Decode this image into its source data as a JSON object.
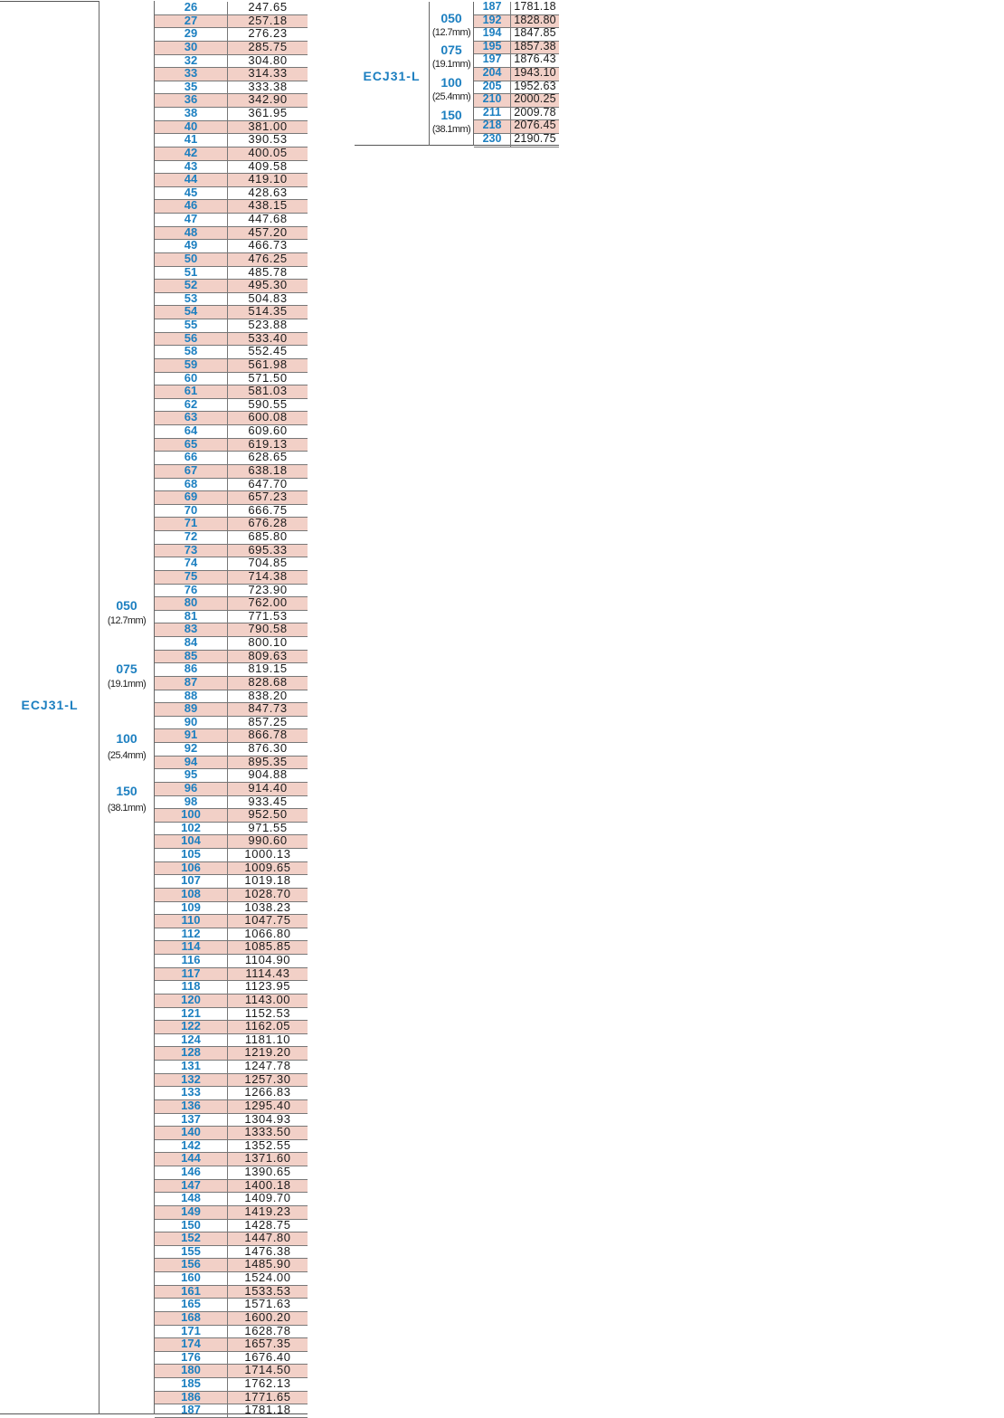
{
  "main_table": {
    "series": "ECJ31-L",
    "sizes": [
      {
        "code": "050",
        "mm": "(12.7mm)"
      },
      {
        "code": "075",
        "mm": "(19.1mm)"
      },
      {
        "code": "100",
        "mm": "(25.4mm)"
      },
      {
        "code": "150",
        "mm": "(38.1mm)"
      }
    ],
    "rows": [
      {
        "code": "26",
        "value": "247.65",
        "shaded": false
      },
      {
        "code": "27",
        "value": "257.18",
        "shaded": true
      },
      {
        "code": "29",
        "value": "276.23",
        "shaded": false
      },
      {
        "code": "30",
        "value": "285.75",
        "shaded": true
      },
      {
        "code": "32",
        "value": "304.80",
        "shaded": false
      },
      {
        "code": "33",
        "value": "314.33",
        "shaded": true
      },
      {
        "code": "35",
        "value": "333.38",
        "shaded": false
      },
      {
        "code": "36",
        "value": "342.90",
        "shaded": true
      },
      {
        "code": "38",
        "value": "361.95",
        "shaded": false
      },
      {
        "code": "40",
        "value": "381.00",
        "shaded": true
      },
      {
        "code": "41",
        "value": "390.53",
        "shaded": false
      },
      {
        "code": "42",
        "value": "400.05",
        "shaded": true
      },
      {
        "code": "43",
        "value": "409.58",
        "shaded": false
      },
      {
        "code": "44",
        "value": "419.10",
        "shaded": true
      },
      {
        "code": "45",
        "value": "428.63",
        "shaded": false
      },
      {
        "code": "46",
        "value": "438.15",
        "shaded": true
      },
      {
        "code": "47",
        "value": "447.68",
        "shaded": false
      },
      {
        "code": "48",
        "value": "457.20",
        "shaded": true
      },
      {
        "code": "49",
        "value": "466.73",
        "shaded": false
      },
      {
        "code": "50",
        "value": "476.25",
        "shaded": true
      },
      {
        "code": "51",
        "value": "485.78",
        "shaded": false
      },
      {
        "code": "52",
        "value": "495.30",
        "shaded": true
      },
      {
        "code": "53",
        "value": "504.83",
        "shaded": false
      },
      {
        "code": "54",
        "value": "514.35",
        "shaded": true
      },
      {
        "code": "55",
        "value": "523.88",
        "shaded": false
      },
      {
        "code": "56",
        "value": "533.40",
        "shaded": true
      },
      {
        "code": "58",
        "value": "552.45",
        "shaded": false
      },
      {
        "code": "59",
        "value": "561.98",
        "shaded": true
      },
      {
        "code": "60",
        "value": "571.50",
        "shaded": false
      },
      {
        "code": "61",
        "value": "581.03",
        "shaded": true
      },
      {
        "code": "62",
        "value": "590.55",
        "shaded": false
      },
      {
        "code": "63",
        "value": "600.08",
        "shaded": true
      },
      {
        "code": "64",
        "value": "609.60",
        "shaded": false
      },
      {
        "code": "65",
        "value": "619.13",
        "shaded": true
      },
      {
        "code": "66",
        "value": "628.65",
        "shaded": false
      },
      {
        "code": "67",
        "value": "638.18",
        "shaded": true
      },
      {
        "code": "68",
        "value": "647.70",
        "shaded": false
      },
      {
        "code": "69",
        "value": "657.23",
        "shaded": true
      },
      {
        "code": "70",
        "value": "666.75",
        "shaded": false
      },
      {
        "code": "71",
        "value": "676.28",
        "shaded": true
      },
      {
        "code": "72",
        "value": "685.80",
        "shaded": false
      },
      {
        "code": "73",
        "value": "695.33",
        "shaded": true
      },
      {
        "code": "74",
        "value": "704.85",
        "shaded": false
      },
      {
        "code": "75",
        "value": "714.38",
        "shaded": true
      },
      {
        "code": "76",
        "value": "723.90",
        "shaded": false
      },
      {
        "code": "80",
        "value": "762.00",
        "shaded": true
      },
      {
        "code": "81",
        "value": "771.53",
        "shaded": false
      },
      {
        "code": "83",
        "value": "790.58",
        "shaded": true
      },
      {
        "code": "84",
        "value": "800.10",
        "shaded": false
      },
      {
        "code": "85",
        "value": "809.63",
        "shaded": true
      },
      {
        "code": "86",
        "value": "819.15",
        "shaded": false
      },
      {
        "code": "87",
        "value": "828.68",
        "shaded": true
      },
      {
        "code": "88",
        "value": "838.20",
        "shaded": false
      },
      {
        "code": "89",
        "value": "847.73",
        "shaded": true
      },
      {
        "code": "90",
        "value": "857.25",
        "shaded": false
      },
      {
        "code": "91",
        "value": "866.78",
        "shaded": true
      },
      {
        "code": "92",
        "value": "876.30",
        "shaded": false
      },
      {
        "code": "94",
        "value": "895.35",
        "shaded": true
      },
      {
        "code": "95",
        "value": "904.88",
        "shaded": false
      },
      {
        "code": "96",
        "value": "914.40",
        "shaded": true
      },
      {
        "code": "98",
        "value": "933.45",
        "shaded": false
      },
      {
        "code": "100",
        "value": "952.50",
        "shaded": true
      },
      {
        "code": "102",
        "value": "971.55",
        "shaded": false
      },
      {
        "code": "104",
        "value": "990.60",
        "shaded": true
      },
      {
        "code": "105",
        "value": "1000.13",
        "shaded": false
      },
      {
        "code": "106",
        "value": "1009.65",
        "shaded": true
      },
      {
        "code": "107",
        "value": "1019.18",
        "shaded": false
      },
      {
        "code": "108",
        "value": "1028.70",
        "shaded": true
      },
      {
        "code": "109",
        "value": "1038.23",
        "shaded": false
      },
      {
        "code": "110",
        "value": "1047.75",
        "shaded": true
      },
      {
        "code": "112",
        "value": "1066.80",
        "shaded": false
      },
      {
        "code": "114",
        "value": "1085.85",
        "shaded": true
      },
      {
        "code": "116",
        "value": "1104.90",
        "shaded": false
      },
      {
        "code": "117",
        "value": "1114.43",
        "shaded": true
      },
      {
        "code": "118",
        "value": "1123.95",
        "shaded": false
      },
      {
        "code": "120",
        "value": "1143.00",
        "shaded": true
      },
      {
        "code": "121",
        "value": "1152.53",
        "shaded": false
      },
      {
        "code": "122",
        "value": "1162.05",
        "shaded": true
      },
      {
        "code": "124",
        "value": "1181.10",
        "shaded": false
      },
      {
        "code": "128",
        "value": "1219.20",
        "shaded": true
      },
      {
        "code": "131",
        "value": "1247.78",
        "shaded": false
      },
      {
        "code": "132",
        "value": "1257.30",
        "shaded": true
      },
      {
        "code": "133",
        "value": "1266.83",
        "shaded": false
      },
      {
        "code": "136",
        "value": "1295.40",
        "shaded": true
      },
      {
        "code": "137",
        "value": "1304.93",
        "shaded": false
      },
      {
        "code": "140",
        "value": "1333.50",
        "shaded": true
      },
      {
        "code": "142",
        "value": "1352.55",
        "shaded": false
      },
      {
        "code": "144",
        "value": "1371.60",
        "shaded": true
      },
      {
        "code": "146",
        "value": "1390.65",
        "shaded": false
      },
      {
        "code": "147",
        "value": "1400.18",
        "shaded": true
      },
      {
        "code": "148",
        "value": "1409.70",
        "shaded": false
      },
      {
        "code": "149",
        "value": "1419.23",
        "shaded": true
      },
      {
        "code": "150",
        "value": "1428.75",
        "shaded": false
      },
      {
        "code": "152",
        "value": "1447.80",
        "shaded": true
      },
      {
        "code": "155",
        "value": "1476.38",
        "shaded": false
      },
      {
        "code": "156",
        "value": "1485.90",
        "shaded": true
      },
      {
        "code": "160",
        "value": "1524.00",
        "shaded": false
      },
      {
        "code": "161",
        "value": "1533.53",
        "shaded": true
      },
      {
        "code": "165",
        "value": "1571.63",
        "shaded": false
      },
      {
        "code": "168",
        "value": "1600.20",
        "shaded": true
      },
      {
        "code": "171",
        "value": "1628.78",
        "shaded": false
      },
      {
        "code": "174",
        "value": "1657.35",
        "shaded": true
      },
      {
        "code": "176",
        "value": "1676.40",
        "shaded": false
      },
      {
        "code": "180",
        "value": "1714.50",
        "shaded": true
      },
      {
        "code": "185",
        "value": "1762.13",
        "shaded": false
      },
      {
        "code": "186",
        "value": "1771.65",
        "shaded": true
      },
      {
        "code": "187",
        "value": "1781.18",
        "shaded": false
      }
    ]
  },
  "side_table": {
    "series": "ECJ31-L",
    "sizes": [
      {
        "code": "050",
        "mm": "(12.7mm)"
      },
      {
        "code": "075",
        "mm": "(19.1mm)"
      },
      {
        "code": "100",
        "mm": "(25.4mm)"
      },
      {
        "code": "150",
        "mm": "(38.1mm)"
      }
    ],
    "rows": [
      {
        "code": "187",
        "value": "1781.18",
        "shaded": false
      },
      {
        "code": "192",
        "value": "1828.80",
        "shaded": true
      },
      {
        "code": "194",
        "value": "1847.85",
        "shaded": false
      },
      {
        "code": "195",
        "value": "1857.38",
        "shaded": true
      },
      {
        "code": "197",
        "value": "1876.43",
        "shaded": false
      },
      {
        "code": "204",
        "value": "1943.10",
        "shaded": true
      },
      {
        "code": "205",
        "value": "1952.63",
        "shaded": false
      },
      {
        "code": "210",
        "value": "2000.25",
        "shaded": true
      },
      {
        "code": "211",
        "value": "2009.78",
        "shaded": false
      },
      {
        "code": "218",
        "value": "2076.45",
        "shaded": true
      },
      {
        "code": "230",
        "value": "2190.75",
        "shaded": false
      }
    ]
  }
}
